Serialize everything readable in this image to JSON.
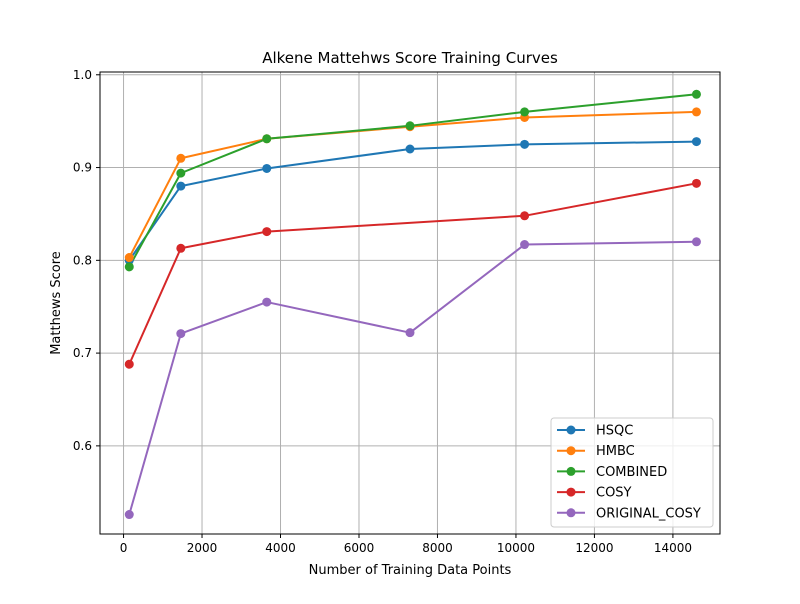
{
  "chart_data": {
    "type": "line",
    "title": "Alkene Mattehws Score Training Curves",
    "xlabel": "Number of Training Data Points",
    "ylabel": "Matthews Score",
    "xlim": [
      -600,
      15200
    ],
    "ylim": [
      0.505,
      1.003
    ],
    "xticks": [
      0,
      2000,
      4000,
      6000,
      8000,
      10000,
      12000,
      14000
    ],
    "xtick_labels": [
      "0",
      "2000",
      "4000",
      "6000",
      "8000",
      "10000",
      "12000",
      "14000"
    ],
    "yticks": [
      0.6,
      0.7,
      0.8,
      0.9,
      1.0
    ],
    "ytick_labels": [
      "0.6",
      "0.7",
      "0.8",
      "0.9",
      "1.0"
    ],
    "grid": true,
    "legend_position": "lower-right",
    "series": [
      {
        "name": "HSQC",
        "color": "#1f77b4",
        "x": [
          146,
          1460,
          3650,
          7300,
          10220,
          14600
        ],
        "y": [
          0.8,
          0.88,
          0.899,
          0.92,
          0.925,
          0.928
        ]
      },
      {
        "name": "HMBC",
        "color": "#ff7f0e",
        "x": [
          146,
          1460,
          3650,
          7300,
          10220,
          14600
        ],
        "y": [
          0.803,
          0.91,
          0.931,
          0.944,
          0.954,
          0.96
        ]
      },
      {
        "name": "COMBINED",
        "color": "#2ca02c",
        "x": [
          146,
          1460,
          3650,
          7300,
          10220,
          14600
        ],
        "y": [
          0.793,
          0.894,
          0.931,
          0.945,
          0.96,
          0.979
        ]
      },
      {
        "name": "COSY",
        "color": "#d62728",
        "x": [
          146,
          1460,
          3650,
          7300,
          10220,
          14600
        ],
        "y": [
          0.688,
          0.813,
          0.831,
          null,
          0.848,
          0.883
        ]
      },
      {
        "name": "ORIGINAL_COSY",
        "color": "#9467bd",
        "x": [
          146,
          1460,
          3650,
          7300,
          10220,
          14600
        ],
        "y": [
          0.526,
          0.721,
          0.755,
          0.722,
          0.817,
          0.82
        ]
      }
    ]
  }
}
